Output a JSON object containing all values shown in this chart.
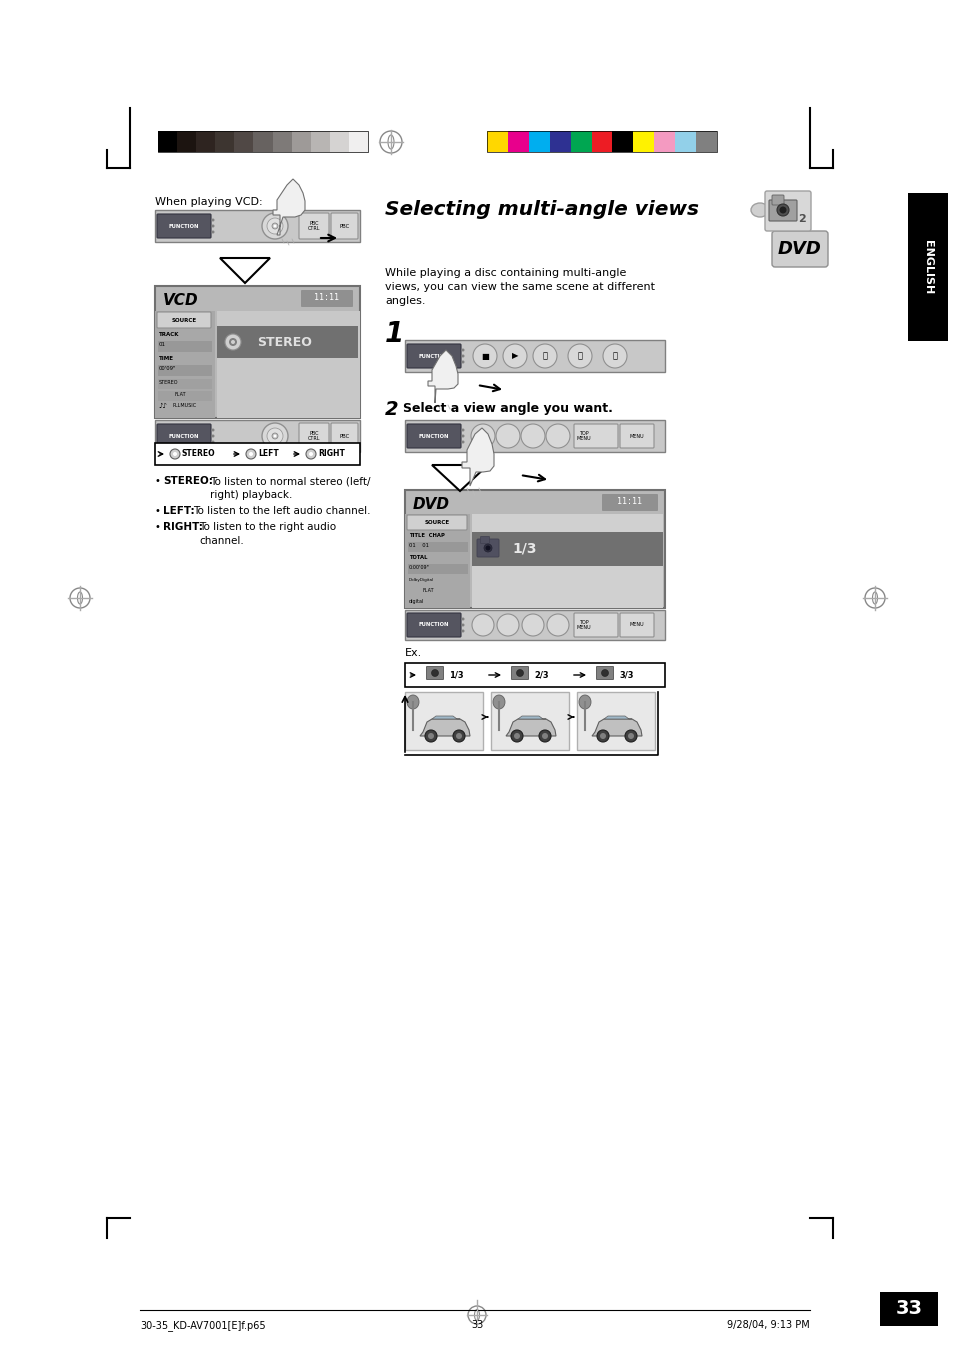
{
  "bg_color": "#ffffff",
  "page_number": "33",
  "footer_left": "30-35_KD-AV7001[E]f.p65",
  "footer_center": "33",
  "footer_right": "9/28/04, 9:13 PM",
  "title": "Selecting multi-angle views",
  "grayscale_swatches": [
    "#000000",
    "#1c1410",
    "#2e2420",
    "#3d3530",
    "#504845",
    "#676260",
    "#7e7a78",
    "#9e9a98",
    "#b8b5b3",
    "#d5d3d2",
    "#f0efef"
  ],
  "color_swatches": [
    "#ffd700",
    "#e8008c",
    "#00aeef",
    "#2e3192",
    "#00a651",
    "#ed1c24",
    "#000000",
    "#fff200",
    "#f49ac1",
    "#92d0e9",
    "#808080"
  ],
  "when_playing_vcd": "When playing VCD:",
  "desc_text": "While playing a disc containing multi-angle\nviews, you can view the same scene at different\nangles.",
  "ex_text": "Ex."
}
